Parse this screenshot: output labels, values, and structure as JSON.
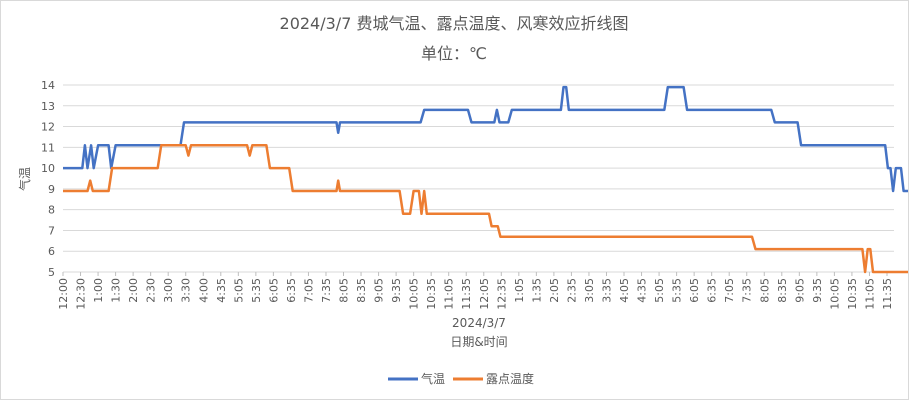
{
  "chart_data": {
    "type": "line",
    "title": "2024/3/7 费城气温、露点温度、风寒效应折线图",
    "subtitle": "单位：℃",
    "xlabel_date": "2024/3/7",
    "xlabel": "日期&时间",
    "ylabel": "气温",
    "ylim": [
      5,
      14
    ],
    "yticks": [
      5,
      6,
      7,
      8,
      9,
      10,
      11,
      12,
      13,
      14
    ],
    "grid": true,
    "legend_position": "bottom",
    "x_tick_labels": [
      "12:00",
      "12:30",
      "1:00",
      "1:30",
      "2:00",
      "2:30",
      "3:00",
      "3:30",
      "4:00",
      "4:35",
      "5:05",
      "5:35",
      "6:05",
      "6:35",
      "7:05",
      "7:35",
      "8:05",
      "8:35",
      "9:05",
      "9:35",
      "10:05",
      "10:35",
      "11:05",
      "11:35",
      "12:05",
      "12:35",
      "1:05",
      "1:35",
      "2:05",
      "2:35",
      "3:05",
      "3:35",
      "4:05",
      "4:35",
      "5:05",
      "5:35",
      "6:05",
      "6:35",
      "7:05",
      "7:35",
      "8:05",
      "8:35",
      "9:05",
      "9:35",
      "10:05",
      "10:35",
      "11:05",
      "11:35"
    ],
    "series": [
      {
        "name": "气温",
        "color": "#4472c4",
        "points": [
          [
            0,
            10
          ],
          [
            1.1,
            10
          ],
          [
            1.25,
            11.1
          ],
          [
            1.4,
            10
          ],
          [
            1.6,
            11.1
          ],
          [
            1.75,
            10
          ],
          [
            2.0,
            11.1
          ],
          [
            2.6,
            11.1
          ],
          [
            2.75,
            10
          ],
          [
            3.0,
            11.1
          ],
          [
            6.7,
            11.1
          ],
          [
            6.9,
            12.2
          ],
          [
            15.6,
            12.2
          ],
          [
            15.7,
            11.7
          ],
          [
            15.8,
            12.2
          ],
          [
            20.4,
            12.2
          ],
          [
            20.6,
            12.8
          ],
          [
            23.1,
            12.8
          ],
          [
            23.3,
            12.2
          ],
          [
            24.6,
            12.2
          ],
          [
            24.75,
            12.8
          ],
          [
            24.9,
            12.2
          ],
          [
            25.4,
            12.2
          ],
          [
            25.6,
            12.8
          ],
          [
            28.4,
            12.8
          ],
          [
            28.55,
            13.9
          ],
          [
            28.7,
            13.9
          ],
          [
            28.85,
            12.8
          ],
          [
            34.3,
            12.8
          ],
          [
            34.5,
            13.9
          ],
          [
            35.4,
            13.9
          ],
          [
            35.6,
            12.8
          ],
          [
            40.4,
            12.8
          ],
          [
            40.6,
            12.2
          ],
          [
            41.9,
            12.2
          ],
          [
            42.1,
            11.1
          ],
          [
            46.9,
            11.1
          ],
          [
            47.05,
            10
          ],
          [
            47.2,
            10
          ],
          [
            47.35,
            8.9
          ],
          [
            47.5,
            10
          ],
          [
            47.8,
            10
          ],
          [
            47.95,
            8.9
          ],
          [
            49.6,
            8.9
          ]
        ]
      },
      {
        "name": "露点温度",
        "color": "#ed7d31",
        "points": [
          [
            0,
            8.9
          ],
          [
            1.4,
            8.9
          ],
          [
            1.55,
            9.4
          ],
          [
            1.7,
            8.9
          ],
          [
            2.6,
            8.9
          ],
          [
            2.8,
            10
          ],
          [
            5.4,
            10
          ],
          [
            5.6,
            11.1
          ],
          [
            7.0,
            11.1
          ],
          [
            7.15,
            10.6
          ],
          [
            7.3,
            11.1
          ],
          [
            10.5,
            11.1
          ],
          [
            10.65,
            10.6
          ],
          [
            10.8,
            11.1
          ],
          [
            11.6,
            11.1
          ],
          [
            11.8,
            10
          ],
          [
            12.9,
            10
          ],
          [
            13.1,
            8.9
          ],
          [
            15.6,
            8.9
          ],
          [
            15.7,
            9.4
          ],
          [
            15.8,
            8.9
          ],
          [
            19.2,
            8.9
          ],
          [
            19.4,
            7.8
          ],
          [
            19.8,
            7.8
          ],
          [
            20.0,
            8.9
          ],
          [
            20.3,
            8.9
          ],
          [
            20.45,
            7.8
          ],
          [
            20.6,
            8.9
          ],
          [
            20.75,
            7.8
          ],
          [
            24.3,
            7.8
          ],
          [
            24.45,
            7.2
          ],
          [
            24.8,
            7.2
          ],
          [
            24.95,
            6.7
          ],
          [
            39.3,
            6.7
          ],
          [
            39.5,
            6.1
          ],
          [
            45.6,
            6.1
          ],
          [
            45.75,
            5
          ],
          [
            45.9,
            6.1
          ],
          [
            46.05,
            6.1
          ],
          [
            46.2,
            5
          ],
          [
            49.6,
            5
          ]
        ]
      }
    ]
  }
}
